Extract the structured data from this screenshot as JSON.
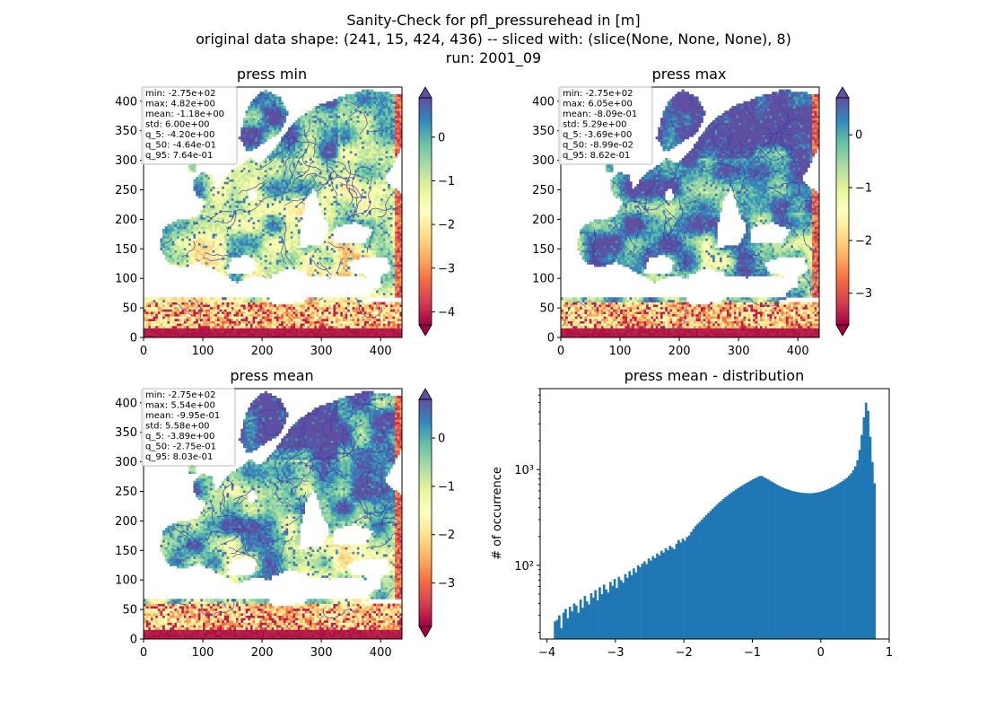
{
  "header": {
    "title": "Sanity-Check for pfl_pressurehead in [m]",
    "subtitle": "original data shape: (241, 15, 424, 436) -- sliced with: (slice(None, None, None), 8)",
    "run": "run: 2001_09"
  },
  "colors": {
    "colormap": [
      "#9e0142",
      "#d53e4f",
      "#f46d43",
      "#fdae61",
      "#fee08b",
      "#ffffbf",
      "#e6f598",
      "#abdda4",
      "#66c2a5",
      "#3288bd",
      "#5e4fa2"
    ],
    "river": "#3a3fa0",
    "histogram": "#1f77b4",
    "stats_box_border": "#bbbbbb"
  },
  "chart_data": [
    {
      "type": "heatmap",
      "title": "press min",
      "xlim": [
        0,
        436
      ],
      "ylim": [
        0,
        424
      ],
      "x_ticks": [
        0,
        100,
        200,
        300,
        400
      ],
      "y_ticks": [
        0,
        50,
        100,
        150,
        200,
        250,
        300,
        350,
        400
      ],
      "colorbar": {
        "range": [
          -4.3,
          0.9
        ],
        "ticks": [
          0,
          -1,
          -2,
          -3,
          -4
        ],
        "tick_labels": [
          "0",
          "−1",
          "−2",
          "−3",
          "−4"
        ]
      },
      "stats": [
        "min: -2.75e+02",
        "max: 4.82e+00",
        "mean: -1.18e+00",
        "std: 6.00e+00",
        "q_5: -4.20e+00",
        "q_50: -4.64e-01",
        "q_95: 7.64e-01"
      ]
    },
    {
      "type": "heatmap",
      "title": "press max",
      "xlim": [
        0,
        436
      ],
      "ylim": [
        0,
        424
      ],
      "x_ticks": [
        0,
        100,
        200,
        300,
        400
      ],
      "y_ticks": [
        0,
        50,
        100,
        150,
        200,
        250,
        300,
        350,
        400
      ],
      "colorbar": {
        "range": [
          -3.6,
          0.7
        ],
        "ticks": [
          0,
          -1,
          -2,
          -3
        ],
        "tick_labels": [
          "0",
          "−1",
          "−2",
          "−3"
        ]
      },
      "stats": [
        "min: -2.75e+02",
        "max: 6.05e+00",
        "mean: -8.09e-01",
        "std: 5.29e+00",
        "q_5: -3.69e+00",
        "q_50: -8.99e-02",
        "q_95: 8.62e-01"
      ]
    },
    {
      "type": "heatmap",
      "title": "press mean",
      "xlim": [
        0,
        436
      ],
      "ylim": [
        0,
        424
      ],
      "x_ticks": [
        0,
        100,
        200,
        300,
        400
      ],
      "y_ticks": [
        0,
        50,
        100,
        150,
        200,
        250,
        300,
        350,
        400
      ],
      "colorbar": {
        "range": [
          -3.9,
          0.8
        ],
        "ticks": [
          0,
          -1,
          -2,
          -3
        ],
        "tick_labels": [
          "0",
          "−1",
          "−2",
          "−3"
        ]
      },
      "stats": [
        "min: -2.75e+02",
        "max: 5.54e+00",
        "mean: -9.95e-01",
        "std: 5.58e+00",
        "q_5: -3.89e+00",
        "q_50: -2.75e-01",
        "q_95: 8.03e-01"
      ]
    },
    {
      "type": "bar",
      "title": "press mean - distribution",
      "ylabel": "# of occurrence",
      "y_scale": "log",
      "xlim": [
        -4.1,
        1.0
      ],
      "ylim": [
        17,
        7000
      ],
      "x_ticks": [
        -4,
        -3,
        -2,
        -1,
        0,
        1
      ],
      "x_tick_labels": [
        "−4",
        "−3",
        "−2",
        "−1",
        "0",
        "1"
      ],
      "y_ticks": [
        100,
        1000
      ],
      "y_tick_labels": [
        "10²",
        "10³"
      ],
      "bin_range": [
        -3.9,
        0.8
      ],
      "values": [
        26,
        27,
        30,
        22,
        32,
        35,
        28,
        37,
        33,
        40,
        38,
        32,
        44,
        36,
        48,
        42,
        39,
        51,
        46,
        55,
        43,
        59,
        50,
        63,
        56,
        52,
        67,
        61,
        72,
        58,
        76,
        70,
        66,
        81,
        74,
        87,
        79,
        93,
        84,
        100,
        96,
        104,
        110,
        103,
        118,
        112,
        125,
        119,
        133,
        127,
        142,
        136,
        151,
        144,
        160,
        154,
        147,
        168,
        184,
        173,
        190,
        181,
        198,
        205,
        223,
        240,
        258,
        272,
        285,
        301,
        318,
        335,
        352,
        370,
        389,
        409,
        430,
        451,
        470,
        492,
        514,
        534,
        556,
        578,
        598,
        620,
        642,
        663,
        685,
        705,
        727,
        748,
        770,
        792,
        812,
        834,
        855,
        860,
        835,
        812,
        790,
        766,
        745,
        722,
        700,
        680,
        662,
        648,
        635,
        624,
        612,
        602,
        594,
        587,
        581,
        576,
        572,
        569,
        567,
        566,
        566,
        568,
        571,
        576,
        582,
        590,
        599,
        610,
        622,
        636,
        652,
        670,
        690,
        712,
        735,
        760,
        788,
        820,
        860,
        910,
        980,
        1080,
        1250,
        1600,
        2300,
        3500,
        5000,
        4100,
        2200,
        1200,
        720
      ]
    }
  ]
}
